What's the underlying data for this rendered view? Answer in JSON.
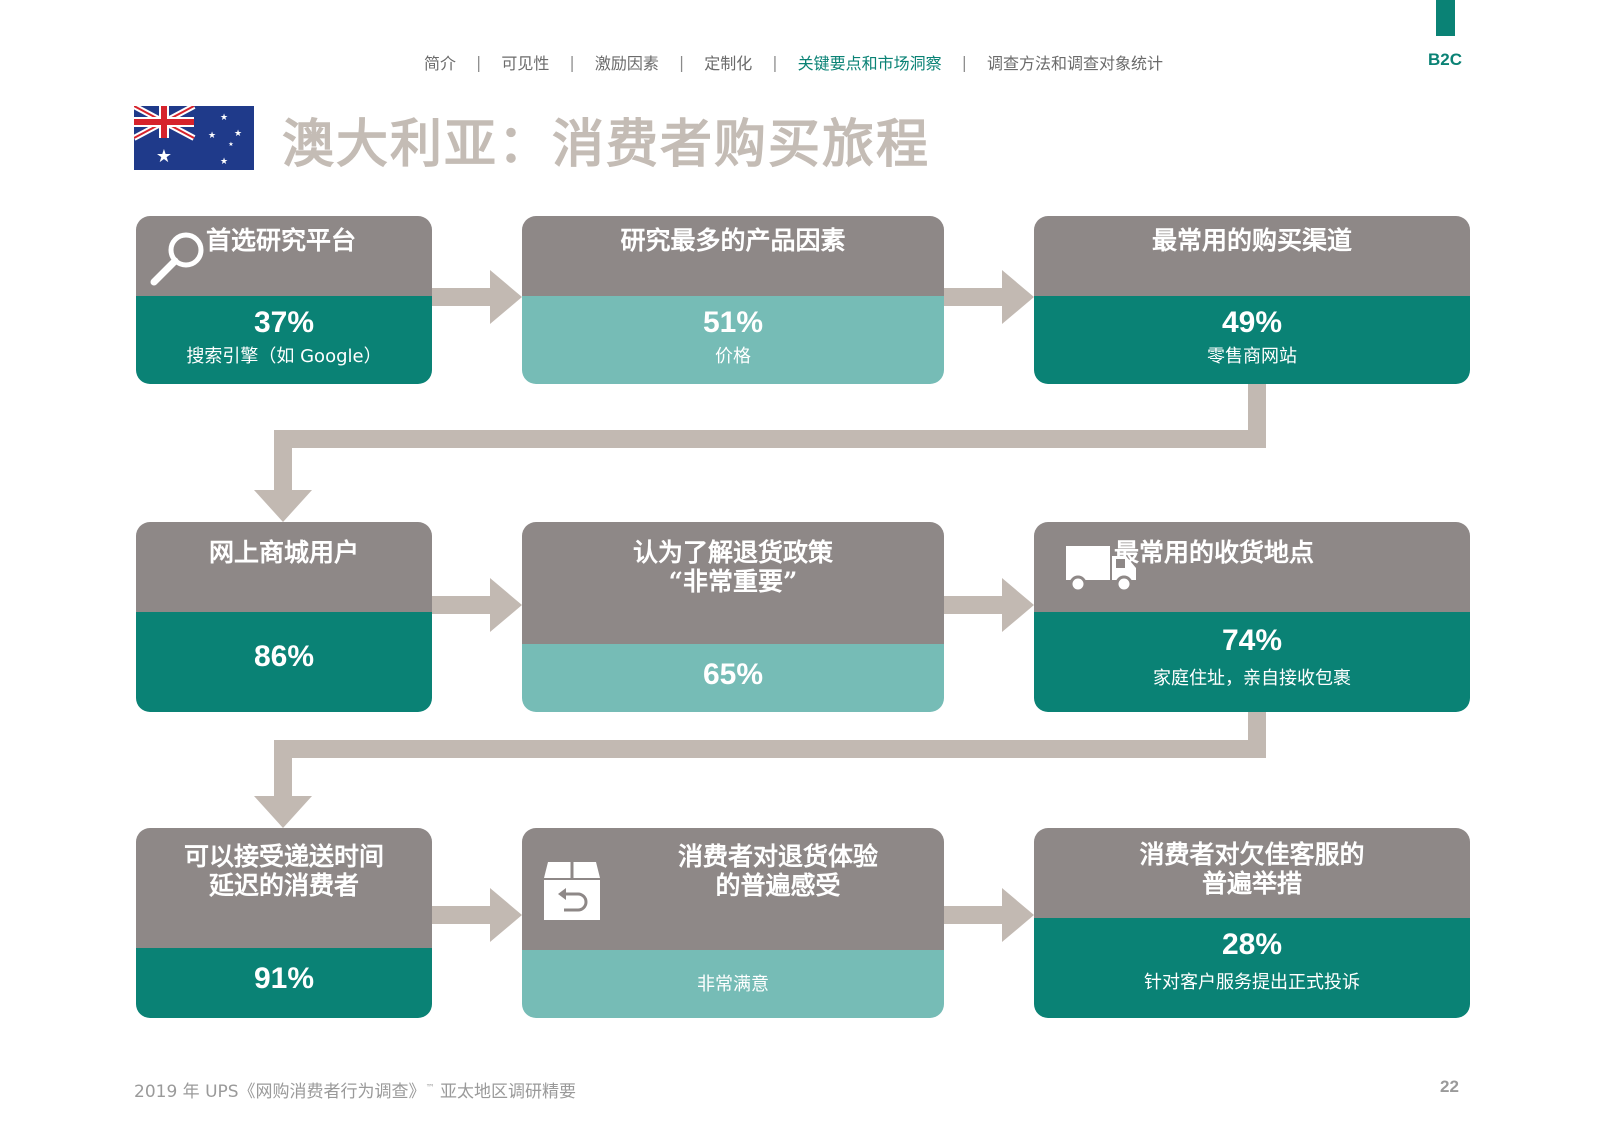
{
  "nav": {
    "items": [
      "简介",
      "可见性",
      "激励因素",
      "定制化",
      "关键要点和市场洞察",
      "调查方法和调查对象统计"
    ],
    "active_index": 4,
    "separator": "|"
  },
  "badge": "B2C",
  "title": "澳大利亚：消费者购买旅程",
  "colors": {
    "teal": "#0a8275",
    "light_teal": "#76bcb6",
    "gray": "#8e8887",
    "arrow": "#c2b9b2",
    "title": "#c4bcb5"
  },
  "cards": [
    {
      "heading": "首选研究平台",
      "value": "37%",
      "sub": "搜索引擎（如 Google）",
      "icon": "magnifier-icon",
      "style": "dark"
    },
    {
      "heading": "研究最多的产品因素",
      "value": "51%",
      "sub": "价格",
      "icon": "",
      "style": "light"
    },
    {
      "heading": "最常用的购买渠道",
      "value": "49%",
      "sub": "零售商网站",
      "icon": "",
      "style": "dark"
    },
    {
      "heading": "网上商城用户",
      "value": "86%",
      "sub": "",
      "icon": "",
      "style": "dark"
    },
    {
      "heading": "认为了解退货政策\n“非常重要”",
      "value": "65%",
      "sub": "",
      "icon": "",
      "style": "light"
    },
    {
      "heading": "最常用的收货地点",
      "value": "74%",
      "sub": "家庭住址，亲自接收包裹",
      "icon": "truck-icon",
      "style": "dark"
    },
    {
      "heading": "可以接受递送时间\n延迟的消费者",
      "value": "91%",
      "sub": "",
      "icon": "",
      "style": "dark"
    },
    {
      "heading": "消费者对退货体验\n的普遍感受",
      "value": "",
      "sub": "非常满意",
      "icon": "return-box-icon",
      "style": "light"
    },
    {
      "heading": "消费者对欠佳客服的\n普遍举措",
      "value": "28%",
      "sub": "针对客户服务提出正式投诉",
      "icon": "",
      "style": "dark"
    }
  ],
  "footer": {
    "text_before": "2019 年 UPS《网购消费者行为调查》",
    "tm": "™",
    "text_after": " 亚太地区调研精要",
    "page": "22"
  }
}
